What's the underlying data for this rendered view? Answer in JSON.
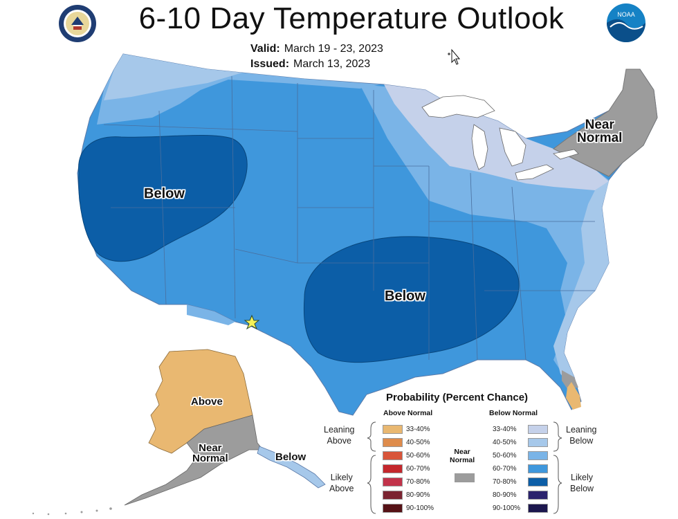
{
  "header": {
    "title": "6-10 Day Temperature Outlook",
    "valid_label": "Valid:",
    "valid_value": "March 19 - 23, 2023",
    "issued_label": "Issued:",
    "issued_value": "March 13, 2023"
  },
  "logos": {
    "left": "department-of-commerce-seal-icon",
    "right": "noaa-logo-icon",
    "right_text": "NOAA"
  },
  "map_labels": {
    "west_below": "Below",
    "south_below": "Below",
    "northeast_near_1": "Near",
    "northeast_near_2": "Normal",
    "alaska_above": "Above",
    "alaska_near_1": "Near",
    "alaska_near_2": "Normal",
    "alaska_below": "Below"
  },
  "legend": {
    "title": "Probability (Percent Chance)",
    "above_header": "Above Normal",
    "below_header": "Below Normal",
    "near_header_1": "Near",
    "near_header_2": "Normal",
    "leaning_above_1": "Leaning",
    "leaning_above_2": "Above",
    "likely_above_1": "Likely",
    "likely_above_2": "Above",
    "leaning_below_1": "Leaning",
    "leaning_below_2": "Below",
    "likely_below_1": "Likely",
    "likely_below_2": "Below",
    "above": [
      {
        "range": "33-40%",
        "color": "#e9b871"
      },
      {
        "range": "40-50%",
        "color": "#de8c4c"
      },
      {
        "range": "50-60%",
        "color": "#d8553a"
      },
      {
        "range": "60-70%",
        "color": "#c4272c"
      },
      {
        "range": "70-80%",
        "color": "#c2334a"
      },
      {
        "range": "80-90%",
        "color": "#7b2431"
      },
      {
        "range": "90-100%",
        "color": "#561216"
      }
    ],
    "below": [
      {
        "range": "33-40%",
        "color": "#c5d1ea"
      },
      {
        "range": "40-50%",
        "color": "#a6c8ea"
      },
      {
        "range": "50-60%",
        "color": "#7ab4e7"
      },
      {
        "range": "60-70%",
        "color": "#3f97dc"
      },
      {
        "range": "70-80%",
        "color": "#0c5ea7"
      },
      {
        "range": "80-90%",
        "color": "#2b236d"
      },
      {
        "range": "90-100%",
        "color": "#1c174e"
      }
    ],
    "near_color": "#9c9c9c"
  }
}
